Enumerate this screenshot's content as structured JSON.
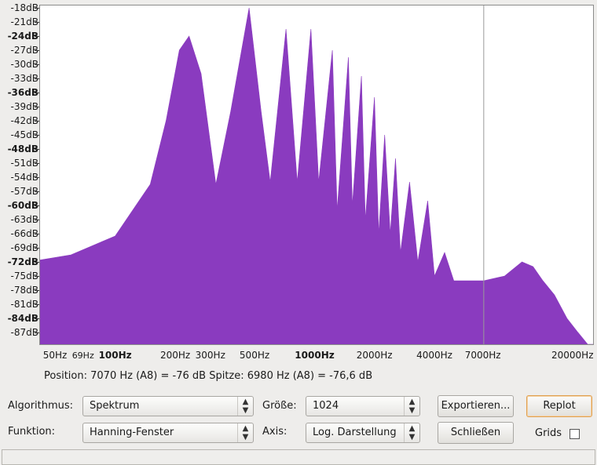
{
  "plot": {
    "y_ticks": [
      {
        "label": "-18dB",
        "bold": false
      },
      {
        "label": "-21dB",
        "bold": false
      },
      {
        "label": "-24dB",
        "bold": true
      },
      {
        "label": "-27dB",
        "bold": false
      },
      {
        "label": "-30dB",
        "bold": false
      },
      {
        "label": "-33dB",
        "bold": false
      },
      {
        "label": "-36dB",
        "bold": true
      },
      {
        "label": "-39dB",
        "bold": false
      },
      {
        "label": "-42dB",
        "bold": false
      },
      {
        "label": "-45dB",
        "bold": false
      },
      {
        "label": "-48dB",
        "bold": true
      },
      {
        "label": "-51dB",
        "bold": false
      },
      {
        "label": "-54dB",
        "bold": false
      },
      {
        "label": "-57dB",
        "bold": false
      },
      {
        "label": "-60dB",
        "bold": true
      },
      {
        "label": "-63dB",
        "bold": false
      },
      {
        "label": "-66dB",
        "bold": false
      },
      {
        "label": "-69dB",
        "bold": false
      },
      {
        "label": "-72dB",
        "bold": true
      },
      {
        "label": "-75dB",
        "bold": false
      },
      {
        "label": "-78dB",
        "bold": false
      },
      {
        "label": "-81dB",
        "bold": false
      },
      {
        "label": "-84dB",
        "bold": true
      },
      {
        "label": "-87dB",
        "bold": false
      }
    ],
    "x_ticks": [
      {
        "label": "50Hz",
        "bold": false,
        "small": false
      },
      {
        "label": "69Hz",
        "bold": false,
        "small": true
      },
      {
        "label": "100Hz",
        "bold": true,
        "small": false
      },
      {
        "label": "200Hz",
        "bold": false,
        "small": false
      },
      {
        "label": "300Hz",
        "bold": false,
        "small": false
      },
      {
        "label": "500Hz",
        "bold": false,
        "small": false
      },
      {
        "label": "1000Hz",
        "bold": true,
        "small": false
      },
      {
        "label": "2000Hz",
        "bold": false,
        "small": false
      },
      {
        "label": "4000Hz",
        "bold": false,
        "small": false
      },
      {
        "label": "7000Hz",
        "bold": false,
        "small": false
      },
      {
        "label": "20000Hz",
        "bold": false,
        "small": false
      }
    ],
    "fill_color": "#8a3bbf",
    "cursor_color": "#9a9a9a"
  },
  "chart_data": {
    "type": "area",
    "xlabel": "",
    "ylabel": "",
    "x_scale": "log",
    "xlim": [
      42,
      25000
    ],
    "ylim": [
      -89.5,
      -17.5
    ],
    "cursor_x": 7070,
    "grid": false,
    "spectrum_envelope": [
      {
        "hz": 42,
        "db": -71.6
      },
      {
        "hz": 60,
        "db": -70.5
      },
      {
        "hz": 100,
        "db": -66.5
      },
      {
        "hz": 150,
        "db": -55.5
      },
      {
        "hz": 180,
        "db": -42.0
      },
      {
        "hz": 210,
        "db": -27.0
      },
      {
        "hz": 235,
        "db": -24.0
      },
      {
        "hz": 270,
        "db": -32.0
      },
      {
        "hz": 320,
        "db": -55.5
      },
      {
        "hz": 380,
        "db": -40.0
      },
      {
        "hz": 470,
        "db": -18.0
      },
      {
        "hz": 540,
        "db": -40.0
      },
      {
        "hz": 600,
        "db": -55.0
      },
      {
        "hz": 720,
        "db": -22.5
      },
      {
        "hz": 820,
        "db": -55.0
      },
      {
        "hz": 960,
        "db": -22.5
      },
      {
        "hz": 1050,
        "db": -55.0
      },
      {
        "hz": 1230,
        "db": -27.0
      },
      {
        "hz": 1300,
        "db": -61.0
      },
      {
        "hz": 1480,
        "db": -28.5
      },
      {
        "hz": 1550,
        "db": -60.0
      },
      {
        "hz": 1720,
        "db": -32.5
      },
      {
        "hz": 1800,
        "db": -63.0
      },
      {
        "hz": 2000,
        "db": -37.0
      },
      {
        "hz": 2100,
        "db": -66.0
      },
      {
        "hz": 2250,
        "db": -45.0
      },
      {
        "hz": 2400,
        "db": -66.0
      },
      {
        "hz": 2550,
        "db": -50.0
      },
      {
        "hz": 2700,
        "db": -70.0
      },
      {
        "hz": 3000,
        "db": -55.0
      },
      {
        "hz": 3300,
        "db": -72.0
      },
      {
        "hz": 3700,
        "db": -59.0
      },
      {
        "hz": 4000,
        "db": -75.0
      },
      {
        "hz": 4500,
        "db": -70.0
      },
      {
        "hz": 5000,
        "db": -76.0
      },
      {
        "hz": 6000,
        "db": -76.0
      },
      {
        "hz": 7070,
        "db": -76.0
      },
      {
        "hz": 9000,
        "db": -75.0
      },
      {
        "hz": 11000,
        "db": -72.0
      },
      {
        "hz": 12500,
        "db": -73.0
      },
      {
        "hz": 14000,
        "db": -76.0
      },
      {
        "hz": 16000,
        "db": -79.0
      },
      {
        "hz": 18500,
        "db": -84.0
      },
      {
        "hz": 21000,
        "db": -87.0
      },
      {
        "hz": 24000,
        "db": -90.0
      }
    ]
  },
  "status": {
    "position_text": "Position: 7070 Hz (A8) = -76 dB   Spitze: 6980 Hz (A8) = -76,6 dB"
  },
  "controls": {
    "algorithm_label": "Algorithmus:",
    "algorithm_value": "Spektrum",
    "function_label": "Funktion:",
    "function_value": "Hanning-Fenster",
    "size_label": "Größe:",
    "size_value": "1024",
    "axis_label": "Axis:",
    "axis_value": "Log. Darstellung",
    "export_button": "Exportieren...",
    "close_button": "Schließen",
    "replot_button": "Replot",
    "grids_label": "Grids",
    "grids_checked": false
  }
}
